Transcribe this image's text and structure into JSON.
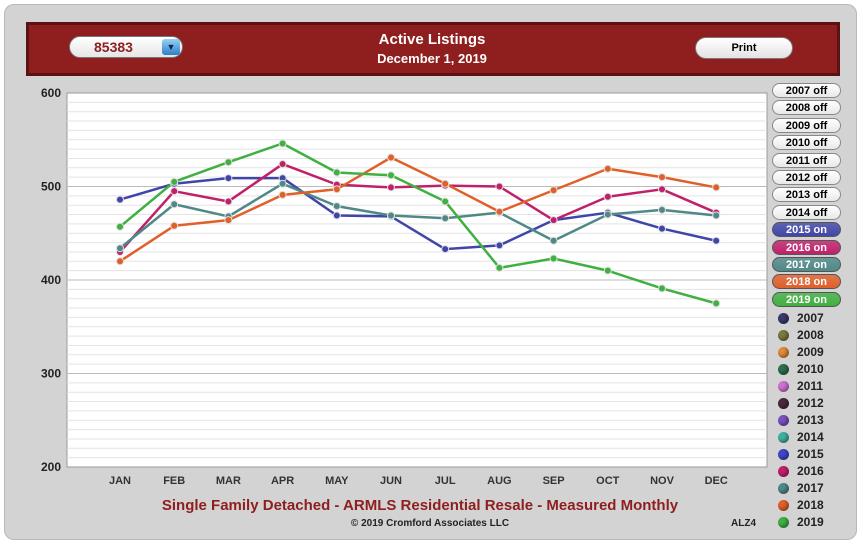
{
  "header": {
    "zip": "85383",
    "title": "Active Listings",
    "subtitle": "December 1, 2019",
    "print_label": "Print"
  },
  "footer": {
    "title": "Single Family Detached - ARMLS Residential Resale - Measured Monthly",
    "copyright": "© 2019 Cromford Associates LLC",
    "code": "ALZ4"
  },
  "toggles": [
    {
      "label": "2007 off",
      "state": "off",
      "color": "#4a4a8a"
    },
    {
      "label": "2008 off",
      "state": "off",
      "color": "#8a8a4a"
    },
    {
      "label": "2009 off",
      "state": "off",
      "color": "#e08a3a"
    },
    {
      "label": "2010 off",
      "state": "off",
      "color": "#2e6e4e"
    },
    {
      "label": "2011 off",
      "state": "off",
      "color": "#c060c0"
    },
    {
      "label": "2012 off",
      "state": "off",
      "color": "#4a2a3a"
    },
    {
      "label": "2013 off",
      "state": "off",
      "color": "#7a50c0"
    },
    {
      "label": "2014 off",
      "state": "off",
      "color": "#40b0a0"
    },
    {
      "label": "2015 on",
      "state": "on",
      "color": "#4046a8"
    },
    {
      "label": "2016 on",
      "state": "on",
      "color": "#c0206a"
    },
    {
      "label": "2017 on",
      "state": "on",
      "color": "#508888"
    },
    {
      "label": "2018 on",
      "state": "on",
      "color": "#e0602a"
    },
    {
      "label": "2019 on",
      "state": "on",
      "color": "#40b040"
    }
  ],
  "legend": [
    {
      "year": "2007",
      "color": "#3a3a6a"
    },
    {
      "year": "2008",
      "color": "#7a7a40"
    },
    {
      "year": "2009",
      "color": "#e08a3a"
    },
    {
      "year": "2010",
      "color": "#2e6e4e"
    },
    {
      "year": "2011",
      "color": "#d070d0"
    },
    {
      "year": "2012",
      "color": "#4a2a3a"
    },
    {
      "year": "2013",
      "color": "#7a50c0"
    },
    {
      "year": "2014",
      "color": "#40b0a0"
    },
    {
      "year": "2015",
      "color": "#4046c8"
    },
    {
      "year": "2016",
      "color": "#c0206a"
    },
    {
      "year": "2017",
      "color": "#508888"
    },
    {
      "year": "2018",
      "color": "#e0602a"
    },
    {
      "year": "2019",
      "color": "#40b040"
    }
  ],
  "chart_data": {
    "type": "line",
    "title": "Active Listings",
    "categories": [
      "JAN",
      "FEB",
      "MAR",
      "APR",
      "MAY",
      "JUN",
      "JUL",
      "AUG",
      "SEP",
      "OCT",
      "NOV",
      "DEC"
    ],
    "ylim": [
      200,
      600
    ],
    "yticks": [
      200,
      300,
      400,
      500,
      600
    ],
    "grid": true,
    "legend": "right",
    "series": [
      {
        "name": "2015",
        "color": "#4046a8",
        "values": [
          486,
          503,
          509,
          509,
          469,
          468,
          433,
          437,
          464,
          472,
          455,
          442
        ]
      },
      {
        "name": "2016",
        "color": "#c0206a",
        "values": [
          430,
          495,
          484,
          524,
          502,
          499,
          501,
          500,
          464,
          489,
          497,
          472
        ]
      },
      {
        "name": "2017",
        "color": "#508888",
        "values": [
          434,
          481,
          468,
          503,
          479,
          469,
          466,
          472,
          442,
          470,
          475,
          469
        ]
      },
      {
        "name": "2018",
        "color": "#e0602a",
        "values": [
          420,
          458,
          464,
          491,
          497,
          531,
          503,
          473,
          496,
          519,
          510,
          499
        ]
      },
      {
        "name": "2019",
        "color": "#40b040",
        "values": [
          457,
          505,
          526,
          546,
          515,
          512,
          484,
          413,
          423,
          410,
          391,
          375
        ]
      }
    ]
  }
}
